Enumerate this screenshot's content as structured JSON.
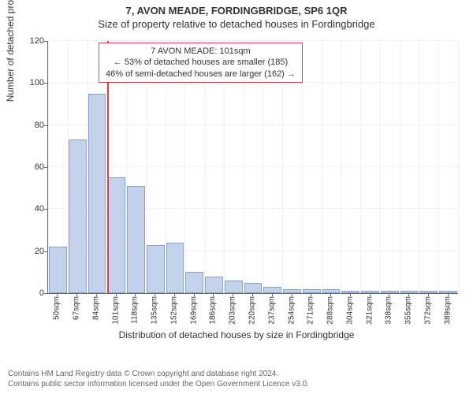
{
  "title_main": "7, AVON MEADE, FORDINGBRIDGE, SP6 1QR",
  "title_sub": "Size of property relative to detached houses in Fordingbridge",
  "chart": {
    "type": "bar",
    "y_axis_label": "Number of detached properties",
    "x_axis_label": "Distribution of detached houses by size in Fordingbridge",
    "ylim_max": 120,
    "y_ticks": [
      0,
      20,
      40,
      60,
      80,
      100,
      120
    ],
    "x_categories": [
      "50sqm",
      "67sqm",
      "84sqm",
      "101sqm",
      "118sqm",
      "135sqm",
      "152sqm",
      "169sqm",
      "186sqm",
      "203sqm",
      "220sqm",
      "237sqm",
      "254sqm",
      "271sqm",
      "288sqm",
      "304sqm",
      "321sqm",
      "338sqm",
      "355sqm",
      "372sqm",
      "389sqm"
    ],
    "values": [
      22,
      73,
      95,
      55,
      51,
      23,
      24,
      10,
      8,
      6,
      5,
      3,
      2,
      2,
      2,
      1,
      1,
      1,
      1,
      1,
      1
    ],
    "bar_fill": "#c3d2ea",
    "bar_border": "#8aa3cc",
    "grid_color": "#eef1f6",
    "axis_color": "#666666",
    "background": "#ffffff",
    "marker_index": 3,
    "marker_color": "#d94040",
    "bar_rel_width": 0.92
  },
  "callout": {
    "line1": "7 AVON MEADE: 101sqm",
    "line2": "← 53% of detached houses are smaller (185)",
    "line3": "46% of semi-detached houses are larger (162) →"
  },
  "footer": {
    "line1": "Contains HM Land Registry data © Crown copyright and database right 2024.",
    "line2": "Contains public sector information licensed under the Open Government Licence v3.0."
  }
}
